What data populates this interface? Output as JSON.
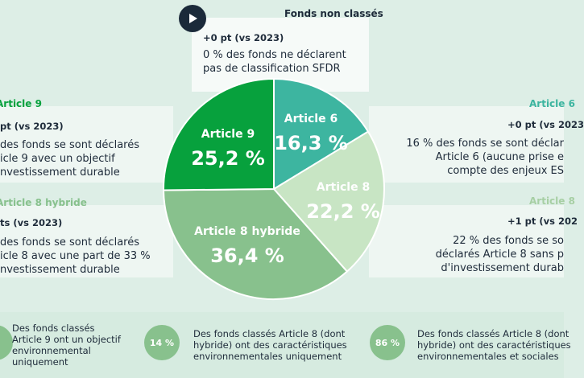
{
  "colors": {
    "article9": "#07a13d",
    "article6": "#3db5a0",
    "article8": "#c8e5c4",
    "article8_hybride": "#88c18d"
  },
  "top_card": {
    "title": "Fonds non classés",
    "change": "+0 pt (vs 2023)",
    "text_lines": [
      "0 % des fonds ne déclarent",
      "pas de classification SFDR"
    ]
  },
  "left_cards": [
    {
      "title": "Article 9",
      "change": "pt (vs 2023)",
      "text_lines": [
        "des fonds se sont déclarés",
        "icle 9 avec un objectif",
        "nvestissement durable"
      ]
    },
    {
      "title": "Article 8 hybride",
      "change": "ts (vs 2023)",
      "text_lines": [
        "des fonds se sont déclarés",
        "icle 8 avec une part de 33 %",
        "nvestissement durable"
      ]
    }
  ],
  "right_cards": [
    {
      "title": "Article 6",
      "change": "+0 pt (vs 2023",
      "text_lines": [
        "16 % des fonds se sont déclar",
        "Article 6 (aucune prise e",
        "compte des enjeux ES"
      ]
    },
    {
      "title": "Article 8",
      "change": "+1 pt (vs 202",
      "text_lines": [
        "22 % des fonds se so",
        "déclarés Article 8 sans p",
        "d'investissement durab"
      ]
    }
  ],
  "chart_data": {
    "type": "pie",
    "title": "",
    "slices": [
      {
        "label": "Article 6",
        "value": 16.3,
        "display": "16,3 %"
      },
      {
        "label": "Article 8",
        "value": 22.2,
        "display": "22,2 %"
      },
      {
        "label": "Article 8 hybride",
        "value": 36.4,
        "display": "36,4 %"
      },
      {
        "label": "Article 9",
        "value": 25.2,
        "display": "25,2 %"
      }
    ]
  },
  "bottom": [
    {
      "badge": "",
      "text_lines": [
        "Des fonds classés",
        "Article 9 ont un objectif",
        "environnemental",
        "uniquement"
      ]
    },
    {
      "badge": "14 %",
      "text_lines": [
        "Des fonds classés Article 8 (dont",
        "hybride) ont des caractéristiques",
        "environnementales uniquement"
      ]
    },
    {
      "badge": "86 %",
      "text_lines": [
        "Des fonds classés Article 8 (dont",
        "hybride) ont des caractéristiques",
        "environnementales et sociales"
      ]
    }
  ]
}
